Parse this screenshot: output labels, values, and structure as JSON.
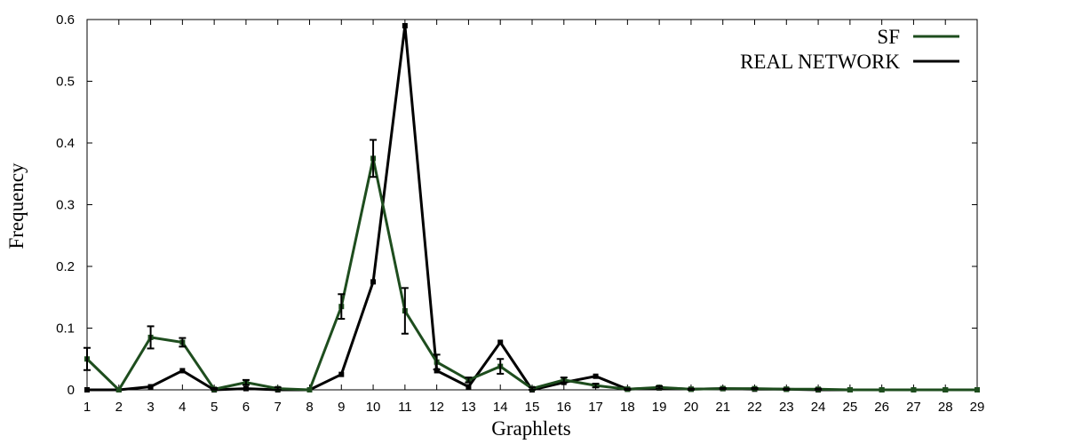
{
  "chart_data": {
    "type": "line",
    "xlabel": "Graphlets",
    "ylabel": "Frequency",
    "xlim": [
      1,
      29
    ],
    "ylim": [
      0,
      0.6
    ],
    "x_ticks": [
      "1",
      "2",
      "3",
      "4",
      "5",
      "6",
      "7",
      "8",
      "9",
      "10",
      "11",
      "12",
      "13",
      "14",
      "15",
      "16",
      "17",
      "18",
      "19",
      "20",
      "21",
      "22",
      "23",
      "24",
      "25",
      "26",
      "27",
      "28",
      "29"
    ],
    "y_ticks": [
      "0",
      "0.1",
      "0.2",
      "0.3",
      "0.4",
      "0.5",
      "0.6"
    ],
    "legend_position": "top-right",
    "grid": false,
    "x": [
      1,
      2,
      3,
      4,
      5,
      6,
      7,
      8,
      9,
      10,
      11,
      12,
      13,
      14,
      15,
      16,
      17,
      18,
      19,
      20,
      21,
      22,
      23,
      24,
      25,
      26,
      27,
      28,
      29
    ],
    "series": [
      {
        "name": "SF",
        "color": "#1e4d1e",
        "values": [
          0.05,
          0.0,
          0.085,
          0.077,
          0.001,
          0.012,
          0.002,
          0.0,
          0.135,
          0.375,
          0.128,
          0.045,
          0.016,
          0.038,
          0.002,
          0.016,
          0.007,
          0.001,
          0.004,
          0.001,
          0.002,
          0.002,
          0.001,
          0.001,
          0.0,
          0.0,
          0.0,
          0.0,
          0.0
        ],
        "errors": [
          0.018,
          0.0,
          0.018,
          0.007,
          0.002,
          0.004,
          0.002,
          0.0,
          0.02,
          0.03,
          0.037,
          0.012,
          0.004,
          0.012,
          0.002,
          0.004,
          0.003,
          0.001,
          0.002,
          0.001,
          0.001,
          0.001,
          0.001,
          0.001,
          0.0,
          0.0,
          0.0,
          0.0,
          0.0
        ]
      },
      {
        "name": "REAL NETWORK",
        "color": "#000000",
        "values": [
          0.0,
          0.0,
          0.005,
          0.031,
          0.0,
          0.002,
          0.0,
          0.0,
          0.025,
          0.175,
          0.59,
          0.031,
          0.005,
          0.077,
          0.0,
          0.012,
          0.022,
          0.001,
          0.003,
          0.001,
          0.002,
          0.001,
          0.001,
          0.0,
          0.0,
          0.0,
          0.0,
          0.0,
          0.0
        ]
      }
    ]
  }
}
